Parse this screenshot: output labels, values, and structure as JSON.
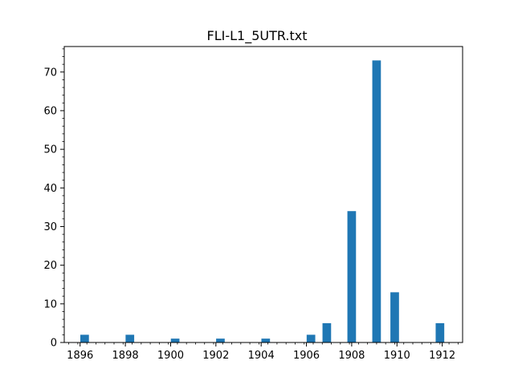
{
  "chart_data": {
    "type": "bar",
    "title": "FLI-L1_5UTR.txt",
    "xlabel": "",
    "ylabel": "",
    "x": [
      1896.2,
      1898.2,
      1900.2,
      1902.2,
      1904.2,
      1906.2,
      1906.9,
      1908.0,
      1909.1,
      1909.9,
      1911.9
    ],
    "values": [
      2,
      2,
      1,
      1,
      1,
      2,
      5,
      34,
      73,
      13,
      5
    ],
    "bar_width": 0.38,
    "xlim": [
      1895.3,
      1912.9
    ],
    "ylim": [
      0,
      76.6
    ],
    "xticks": [
      1896,
      1898,
      1900,
      1902,
      1904,
      1906,
      1908,
      1910,
      1912
    ],
    "yticks": [
      0,
      10,
      20,
      30,
      40,
      50,
      60,
      70
    ],
    "grid": false,
    "color": "#1f77b4"
  }
}
